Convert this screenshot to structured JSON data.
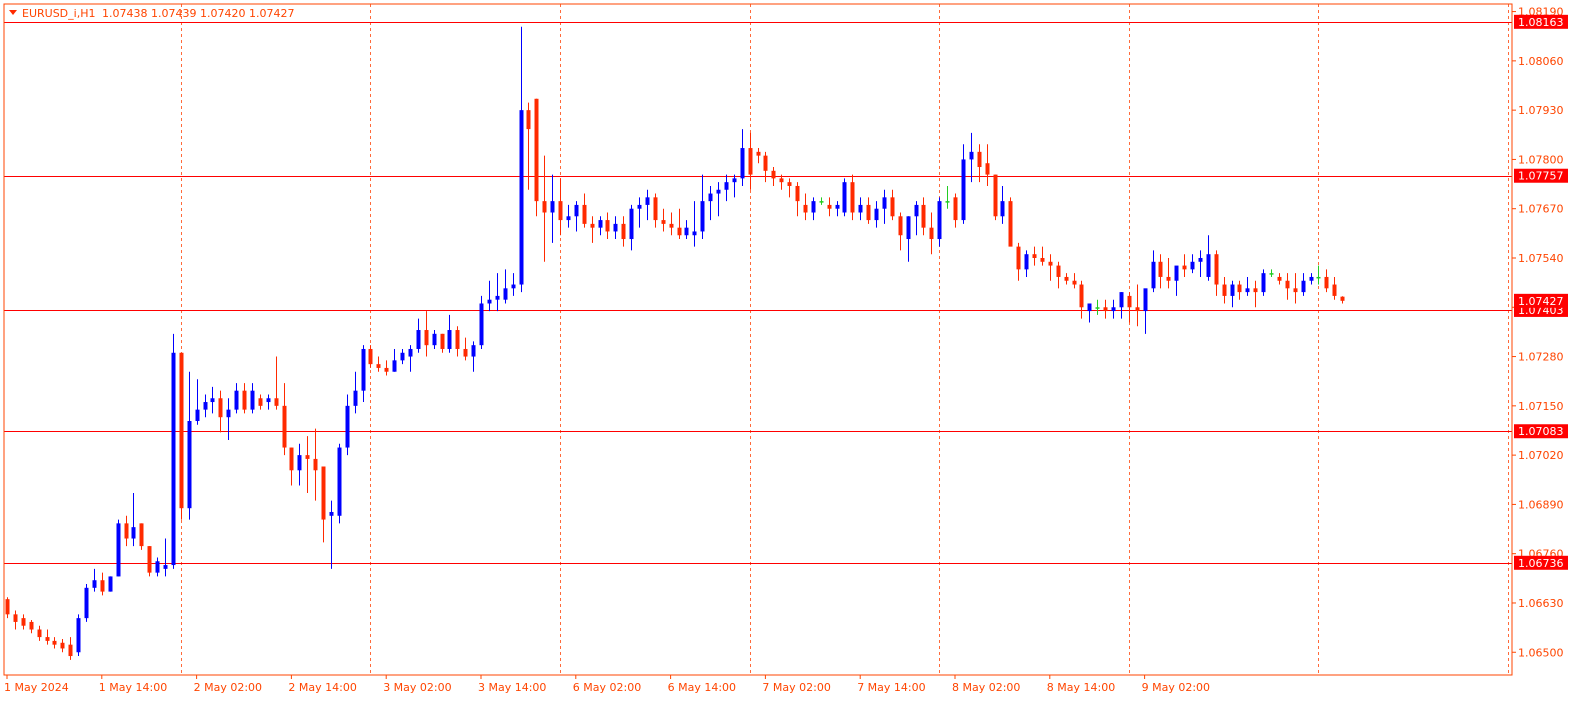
{
  "header": {
    "symbol": "EURUSD_i,H1",
    "ohlc": "1.07438 1.07439 1.07420 1.07427"
  },
  "colors": {
    "bull": "#0000ff",
    "bear": "#ff2a00",
    "doji": "#22cc22",
    "hline": "#ff0000",
    "vgrid": "#ff6a3a",
    "axis_text": "#ff4500",
    "badge_bg": "#ff0000",
    "badge_text": "#ffffff",
    "frame": "#ff4500"
  },
  "chart_data": {
    "type": "candlestick",
    "timeframe": "H1",
    "ylim": [
      1.0644,
      1.0821
    ],
    "y_ticks": [
      "1.08190",
      "1.08060",
      "1.07930",
      "1.07800",
      "1.07670",
      "1.07540",
      "1.07410",
      "1.07280",
      "1.07150",
      "1.07020",
      "1.06890",
      "1.06760",
      "1.06630",
      "1.06500"
    ],
    "x_ticks": [
      {
        "index": 0,
        "label": "1 May 2024"
      },
      {
        "index": 12,
        "label": "1 May 14:00"
      },
      {
        "index": 24,
        "label": "2 May 02:00"
      },
      {
        "index": 36,
        "label": "2 May 14:00"
      },
      {
        "index": 48,
        "label": "3 May 02:00"
      },
      {
        "index": 60,
        "label": "3 May 14:00"
      },
      {
        "index": 72,
        "label": "6 May 02:00"
      },
      {
        "index": 84,
        "label": "6 May 14:00"
      },
      {
        "index": 96,
        "label": "7 May 02:00"
      },
      {
        "index": 108,
        "label": "7 May 14:00"
      },
      {
        "index": 120,
        "label": "8 May 02:00"
      },
      {
        "index": 132,
        "label": "8 May 14:00"
      },
      {
        "index": 144,
        "label": "9 May 02:00"
      }
    ],
    "horizontal_lines": [
      {
        "price": 1.08163,
        "label": "1.08163"
      },
      {
        "price": 1.07757,
        "label": "1.07757"
      },
      {
        "price": 1.07403,
        "label": "1.07403"
      },
      {
        "price": 1.07083,
        "label": "1.07083"
      },
      {
        "price": 1.06736,
        "label": "1.06736"
      }
    ],
    "current_price": {
      "price": 1.07427,
      "label": "1.07427"
    },
    "candles": [
      [
        1.0664,
        1.06645,
        1.0659,
        1.066
      ],
      [
        1.066,
        1.0661,
        1.0656,
        1.0658
      ],
      [
        1.0659,
        1.066,
        1.0656,
        1.0657
      ],
      [
        1.0658,
        1.06585,
        1.0655,
        1.0656
      ],
      [
        1.0656,
        1.0657,
        1.0653,
        1.0654
      ],
      [
        1.0654,
        1.0656,
        1.0652,
        1.0653
      ],
      [
        1.0653,
        1.0654,
        1.0651,
        1.0652
      ],
      [
        1.06525,
        1.06535,
        1.065,
        1.0651
      ],
      [
        1.0652,
        1.0654,
        1.0648,
        1.0649
      ],
      [
        1.065,
        1.066,
        1.0649,
        1.0659
      ],
      [
        1.0659,
        1.0668,
        1.0658,
        1.0667
      ],
      [
        1.0667,
        1.0672,
        1.0666,
        1.0669
      ],
      [
        1.0669,
        1.0671,
        1.0665,
        1.0666
      ],
      [
        1.0666,
        1.067,
        1.0666,
        1.067
      ],
      [
        1.067,
        1.0685,
        1.067,
        1.0684
      ],
      [
        1.0684,
        1.0686,
        1.0678,
        1.068
      ],
      [
        1.068,
        1.0692,
        1.0678,
        1.0683
      ],
      [
        1.0684,
        1.0684,
        1.0677,
        1.0678
      ],
      [
        1.0678,
        1.0678,
        1.067,
        1.0671
      ],
      [
        1.0671,
        1.0675,
        1.067,
        1.0674
      ],
      [
        1.0672,
        1.068,
        1.067,
        1.0673
      ],
      [
        1.0673,
        1.0734,
        1.0672,
        1.0729
      ],
      [
        1.0729,
        1.0729,
        1.0685,
        1.0688
      ],
      [
        1.0688,
        1.0724,
        1.0685,
        1.0711
      ],
      [
        1.0711,
        1.0722,
        1.071,
        1.0714
      ],
      [
        1.0714,
        1.0718,
        1.0712,
        1.0716
      ],
      [
        1.0716,
        1.072,
        1.0713,
        1.0717
      ],
      [
        1.0717,
        1.0719,
        1.0708,
        1.0712
      ],
      [
        1.0712,
        1.0717,
        1.0706,
        1.0714
      ],
      [
        1.0714,
        1.0721,
        1.0713,
        1.0719
      ],
      [
        1.0719,
        1.0721,
        1.0713,
        1.0714
      ],
      [
        1.0714,
        1.0721,
        1.0713,
        1.0719
      ],
      [
        1.0717,
        1.0718,
        1.0714,
        1.0715
      ],
      [
        1.0716,
        1.0718,
        1.0714,
        1.0717
      ],
      [
        1.0717,
        1.0728,
        1.0714,
        1.0715
      ],
      [
        1.0715,
        1.0721,
        1.0702,
        1.0704
      ],
      [
        1.0704,
        1.0704,
        1.0694,
        1.0698
      ],
      [
        1.0698,
        1.0705,
        1.0694,
        1.0702
      ],
      [
        1.0702,
        1.0707,
        1.0692,
        1.0701
      ],
      [
        1.0701,
        1.0709,
        1.069,
        1.0698
      ],
      [
        1.0699,
        1.0699,
        1.0679,
        1.0685
      ],
      [
        1.0686,
        1.069,
        1.0672,
        1.0687
      ],
      [
        1.0686,
        1.0705,
        1.0684,
        1.0704
      ],
      [
        1.0704,
        1.0718,
        1.0702,
        1.0715
      ],
      [
        1.0715,
        1.0724,
        1.0713,
        1.0719
      ],
      [
        1.0719,
        1.0731,
        1.0716,
        1.073
      ],
      [
        1.073,
        1.0731,
        1.0725,
        1.0726
      ],
      [
        1.0726,
        1.0728,
        1.0724,
        1.0725
      ],
      [
        1.0725,
        1.0727,
        1.0723,
        1.0724
      ],
      [
        1.0724,
        1.073,
        1.0724,
        1.0727
      ],
      [
        1.0727,
        1.073,
        1.0726,
        1.0729
      ],
      [
        1.0728,
        1.0731,
        1.0724,
        1.073
      ],
      [
        1.073,
        1.0738,
        1.0729,
        1.0735
      ],
      [
        1.0735,
        1.074,
        1.0728,
        1.0731
      ],
      [
        1.0731,
        1.0735,
        1.073,
        1.0734
      ],
      [
        1.0734,
        1.0734,
        1.0729,
        1.073
      ],
      [
        1.073,
        1.0739,
        1.0729,
        1.0735
      ],
      [
        1.0735,
        1.0736,
        1.0728,
        1.073
      ],
      [
        1.073,
        1.0733,
        1.0727,
        1.0728
      ],
      [
        1.0728,
        1.0732,
        1.0724,
        1.0731
      ],
      [
        1.0731,
        1.0744,
        1.073,
        1.0742
      ],
      [
        1.0742,
        1.0748,
        1.074,
        1.0743
      ],
      [
        1.0743,
        1.075,
        1.074,
        1.0744
      ],
      [
        1.0743,
        1.0751,
        1.0742,
        1.0746
      ],
      [
        1.0746,
        1.075,
        1.0744,
        1.0747
      ],
      [
        1.0747,
        1.0815,
        1.0745,
        1.0793
      ],
      [
        1.0793,
        1.0795,
        1.0772,
        1.0788
      ],
      [
        1.0796,
        1.0796,
        1.0765,
        1.0769
      ],
      [
        1.0769,
        1.0781,
        1.0753,
        1.0766
      ],
      [
        1.0766,
        1.0776,
        1.0758,
        1.0769
      ],
      [
        1.0769,
        1.0775,
        1.076,
        1.0764
      ],
      [
        1.0764,
        1.0768,
        1.0762,
        1.0765
      ],
      [
        1.0765,
        1.0769,
        1.0761,
        1.0768
      ],
      [
        1.0768,
        1.0771,
        1.0762,
        1.0763
      ],
      [
        1.0763,
        1.0765,
        1.0758,
        1.0762
      ],
      [
        1.0762,
        1.0765,
        1.076,
        1.0764
      ],
      [
        1.0764,
        1.0766,
        1.0759,
        1.0761
      ],
      [
        1.0761,
        1.0765,
        1.0759,
        1.0763
      ],
      [
        1.0763,
        1.0765,
        1.0757,
        1.0759
      ],
      [
        1.0759,
        1.0768,
        1.0756,
        1.0767
      ],
      [
        1.0767,
        1.077,
        1.0762,
        1.0768
      ],
      [
        1.0768,
        1.0772,
        1.0764,
        1.077
      ],
      [
        1.077,
        1.0771,
        1.0762,
        1.0764
      ],
      [
        1.0764,
        1.0767,
        1.0761,
        1.0763
      ],
      [
        1.0763,
        1.0766,
        1.076,
        1.0762
      ],
      [
        1.0762,
        1.0767,
        1.0759,
        1.076
      ],
      [
        1.076,
        1.0764,
        1.0759,
        1.0762
      ],
      [
        1.076,
        1.0769,
        1.0757,
        1.0761
      ],
      [
        1.0761,
        1.0776,
        1.0759,
        1.0769
      ],
      [
        1.0769,
        1.0773,
        1.0764,
        1.0771
      ],
      [
        1.0771,
        1.0774,
        1.0765,
        1.0772
      ],
      [
        1.0772,
        1.0776,
        1.0769,
        1.0774
      ],
      [
        1.0774,
        1.0776,
        1.077,
        1.0775
      ],
      [
        1.0775,
        1.0788,
        1.0773,
        1.0783
      ],
      [
        1.0783,
        1.0787,
        1.0772,
        1.0776
      ],
      [
        1.0782,
        1.0783,
        1.0779,
        1.0781
      ],
      [
        1.0781,
        1.0782,
        1.0774,
        1.0777
      ],
      [
        1.0777,
        1.0778,
        1.0773,
        1.0775
      ],
      [
        1.0775,
        1.0776,
        1.0772,
        1.0774
      ],
      [
        1.0774,
        1.0775,
        1.077,
        1.0773
      ],
      [
        1.0773,
        1.0774,
        1.0765,
        1.0769
      ],
      [
        1.0768,
        1.0771,
        1.0764,
        1.0766
      ],
      [
        1.0766,
        1.077,
        1.0764,
        1.0769
      ],
      [
        1.0769,
        1.077,
        1.0768,
        1.0769
      ],
      [
        1.0768,
        1.077,
        1.0765,
        1.0767
      ],
      [
        1.0767,
        1.0769,
        1.0765,
        1.0768
      ],
      [
        1.0766,
        1.0775,
        1.0765,
        1.0774
      ],
      [
        1.0774,
        1.0776,
        1.0764,
        1.0766
      ],
      [
        1.0766,
        1.077,
        1.0764,
        1.0768
      ],
      [
        1.0768,
        1.077,
        1.0763,
        1.0764
      ],
      [
        1.0764,
        1.0769,
        1.0762,
        1.0767
      ],
      [
        1.0767,
        1.0772,
        1.0763,
        1.077
      ],
      [
        1.077,
        1.0772,
        1.0764,
        1.0765
      ],
      [
        1.0765,
        1.0766,
        1.0756,
        1.076
      ],
      [
        1.0759,
        1.0765,
        1.0753,
        1.0765
      ],
      [
        1.0765,
        1.0769,
        1.076,
        1.0768
      ],
      [
        1.0768,
        1.077,
        1.076,
        1.0762
      ],
      [
        1.0762,
        1.0766,
        1.0755,
        1.0759
      ],
      [
        1.0759,
        1.077,
        1.0757,
        1.0769
      ],
      [
        1.0769,
        1.0773,
        1.0767,
        1.0769
      ],
      [
        1.077,
        1.0771,
        1.0762,
        1.0764
      ],
      [
        1.0764,
        1.0784,
        1.0763,
        1.078
      ],
      [
        1.078,
        1.0787,
        1.0774,
        1.0782
      ],
      [
        1.0782,
        1.0784,
        1.0774,
        1.0778
      ],
      [
        1.0779,
        1.0784,
        1.0773,
        1.0776
      ],
      [
        1.0776,
        1.0776,
        1.0764,
        1.0765
      ],
      [
        1.0765,
        1.0773,
        1.0763,
        1.0769
      ],
      [
        1.0769,
        1.077,
        1.0758,
        1.0757
      ],
      [
        1.0757,
        1.0758,
        1.0748,
        1.0751
      ],
      [
        1.0751,
        1.0756,
        1.0749,
        1.0755
      ],
      [
        1.0755,
        1.0757,
        1.0752,
        1.0754
      ],
      [
        1.0754,
        1.0757,
        1.0752,
        1.0753
      ],
      [
        1.0753,
        1.0755,
        1.0748,
        1.0752
      ],
      [
        1.0752,
        1.0753,
        1.0746,
        1.0749
      ],
      [
        1.0749,
        1.075,
        1.0747,
        1.0748
      ],
      [
        1.0748,
        1.075,
        1.0746,
        1.0747
      ],
      [
        1.0747,
        1.0748,
        1.0738,
        1.0741
      ],
      [
        1.074,
        1.0742,
        1.0737,
        1.0742
      ],
      [
        1.0741,
        1.0743,
        1.0739,
        1.0741
      ],
      [
        1.0741,
        1.0743,
        1.0738,
        1.074
      ],
      [
        1.074,
        1.0743,
        1.0738,
        1.0741
      ],
      [
        1.0741,
        1.0745,
        1.0738,
        1.0745
      ],
      [
        1.0744,
        1.0745,
        1.0737,
        1.0741
      ],
      [
        1.0741,
        1.0747,
        1.0736,
        1.074
      ],
      [
        1.074,
        1.0745,
        1.0734,
        1.0746
      ],
      [
        1.0746,
        1.0756,
        1.0745,
        1.0753
      ],
      [
        1.0753,
        1.0755,
        1.0746,
        1.0749
      ],
      [
        1.0749,
        1.0754,
        1.0746,
        1.0748
      ],
      [
        1.0748,
        1.0751,
        1.0744,
        1.0752
      ],
      [
        1.0752,
        1.0755,
        1.0749,
        1.0751
      ],
      [
        1.0751,
        1.0755,
        1.075,
        1.0753
      ],
      [
        1.0753,
        1.0756,
        1.0749,
        1.0754
      ],
      [
        1.0749,
        1.076,
        1.0748,
        1.0755
      ],
      [
        1.0755,
        1.0756,
        1.0744,
        1.0747
      ],
      [
        1.0747,
        1.0749,
        1.0742,
        1.0744
      ],
      [
        1.0744,
        1.0748,
        1.0741,
        1.0747
      ],
      [
        1.0747,
        1.0748,
        1.0743,
        1.0745
      ],
      [
        1.0745,
        1.0749,
        1.0744,
        1.0746
      ],
      [
        1.0746,
        1.0748,
        1.0741,
        1.0745
      ],
      [
        1.0745,
        1.0751,
        1.0744,
        1.075
      ],
      [
        1.075,
        1.0751,
        1.0749,
        1.075
      ],
      [
        1.0749,
        1.075,
        1.0747,
        1.0748
      ],
      [
        1.0748,
        1.075,
        1.0743,
        1.0746
      ],
      [
        1.0746,
        1.075,
        1.0742,
        1.0745
      ],
      [
        1.0745,
        1.075,
        1.0744,
        1.0748
      ],
      [
        1.0748,
        1.075,
        1.0747,
        1.0749
      ],
      [
        1.0749,
        1.0752,
        1.0747,
        1.0749
      ],
      [
        1.0749,
        1.0751,
        1.0745,
        1.0746
      ],
      [
        1.0747,
        1.0749,
        1.0743,
        1.0744
      ],
      [
        1.07438,
        1.07439,
        1.0742,
        1.07427
      ]
    ]
  }
}
